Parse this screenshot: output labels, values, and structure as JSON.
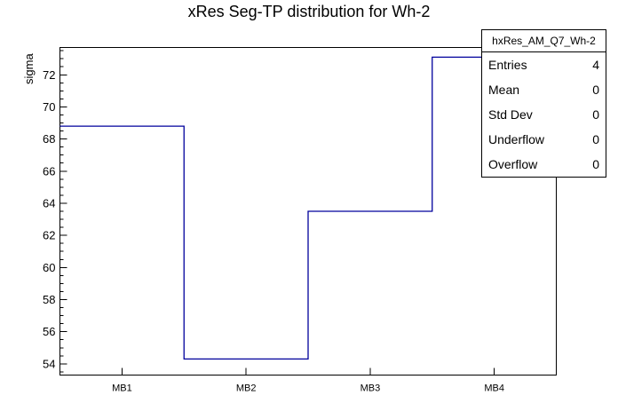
{
  "title": "xRes Seg-TP distribution for Wh-2",
  "colors": {
    "line": "#00009c",
    "axis": "#000000",
    "background": "#ffffff"
  },
  "y_axis": {
    "label": "sigma",
    "tick_labels": [
      "54",
      "56",
      "58",
      "60",
      "62",
      "64",
      "66",
      "68",
      "70",
      "72"
    ]
  },
  "x_axis": {
    "tick_labels": [
      "MB1",
      "MB2",
      "MB3",
      "MB4"
    ]
  },
  "stats_box": {
    "header": "hxRes_AM_Q7_Wh-2",
    "rows": [
      {
        "label": "Entries",
        "value": "4"
      },
      {
        "label": "Mean",
        "value": "0"
      },
      {
        "label": "Std Dev",
        "value": "0"
      },
      {
        "label": "Underflow",
        "value": "0"
      },
      {
        "label": "Overflow",
        "value": "0"
      }
    ]
  },
  "chart_data": {
    "type": "step-histogram",
    "title": "xRes Seg-TP distribution for Wh-2",
    "xlabel": "",
    "ylabel": "sigma",
    "categories": [
      "MB1",
      "MB2",
      "MB3",
      "MB4"
    ],
    "values": [
      68.8,
      54.3,
      63.5,
      73.1
    ],
    "ylim": [
      53.3,
      73.7
    ],
    "y_major_ticks": [
      54,
      56,
      58,
      60,
      62,
      64,
      66,
      68,
      70,
      72
    ],
    "y_minor_step": 0.5,
    "grid": false,
    "legend": false,
    "line_color": "#00009c",
    "series_name": "hxRes_AM_Q7_Wh-2",
    "entries": 4
  }
}
